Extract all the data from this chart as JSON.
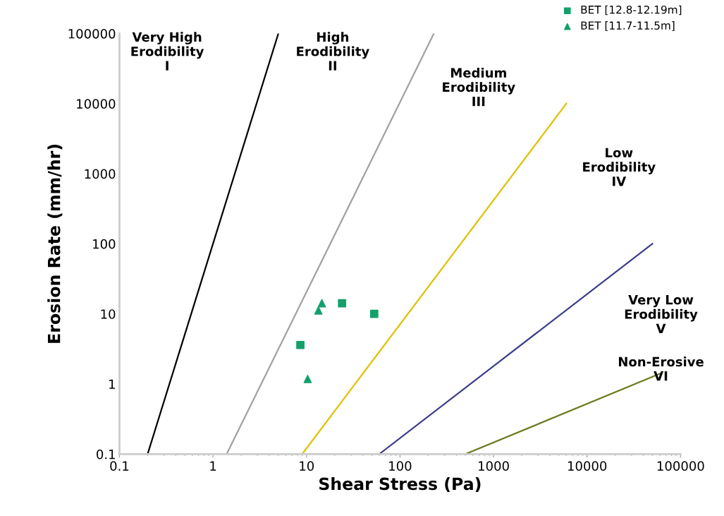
{
  "chart_data": {
    "type": "scatter",
    "xlabel": "Shear Stress (Pa)",
    "ylabel": "Erosion Rate (mm/hr)",
    "log": "xy",
    "xlim": [
      0.1,
      100000
    ],
    "ylim": [
      0.1,
      100000
    ],
    "xticks": [
      0.1,
      1,
      10,
      100,
      1000,
      10000,
      100000
    ],
    "yticks": [
      0.1,
      1,
      10,
      100,
      1000,
      10000,
      100000
    ],
    "grid": false,
    "legend": "top right",
    "series": [
      {
        "type": "line",
        "color": "#000000",
        "x": [
          0.2,
          5
        ],
        "values": [
          0.1,
          100000
        ],
        "marker": "none"
      },
      {
        "type": "line",
        "color": "#a0a0a0",
        "x": [
          1.4,
          230
        ],
        "values": [
          0.1,
          100000
        ],
        "marker": "none"
      },
      {
        "type": "line",
        "color": "#e0c000",
        "x": [
          9,
          6000
        ],
        "values": [
          0.1,
          10000
        ],
        "marker": "none"
      },
      {
        "type": "line",
        "color": "#3c3c8c",
        "x": [
          60,
          50000
        ],
        "values": [
          0.1,
          100
        ],
        "marker": "none"
      },
      {
        "type": "line",
        "color": "#6b7a1e",
        "x": [
          500,
          60000
        ],
        "values": [
          0.1,
          1.4
        ],
        "marker": "none"
      },
      {
        "name": "BET [12.8-12.19m]",
        "color": "#13a06a",
        "marker": "square",
        "x": [
          8.6,
          24,
          53
        ],
        "values": [
          3.6,
          14.2,
          10
        ]
      },
      {
        "name": "BET [11.7-11.5m]",
        "color": "#13a06a",
        "marker": "triangle",
        "x": [
          10.3,
          13.4,
          14.6
        ],
        "values": [
          1.18,
          11.2,
          14.2
        ]
      }
    ],
    "annotations": [
      "Very High\nErodibility\nI",
      "High\nErodibility\nII",
      "Medium\nErodibility\nIII",
      "Low\nErodibility\nIV",
      "Very Low\nErodibility\nV",
      "Non-Erosive\nVI"
    ]
  }
}
